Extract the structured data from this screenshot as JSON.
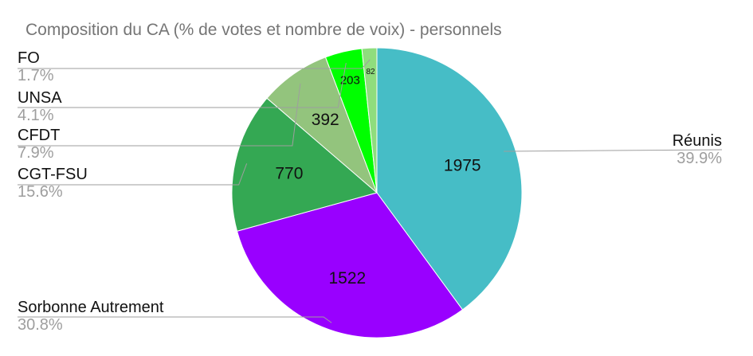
{
  "chart_data": {
    "type": "pie",
    "title": "Composition du CA (% de votes et nombre de voix) - personnels",
    "slices": [
      {
        "name": "Réunis",
        "value": 1975,
        "percent": "39.9%",
        "color": "#46bdc6"
      },
      {
        "name": "Sorbonne Autrement",
        "value": 1522,
        "percent": "30.8%",
        "color": "#9900ff"
      },
      {
        "name": "CGT-FSU",
        "value": 770,
        "percent": "15.6%",
        "color": "#34a853"
      },
      {
        "name": "CFDT",
        "value": 392,
        "percent": "7.9%",
        "color": "#93c47d"
      },
      {
        "name": "UNSA",
        "value": 203,
        "percent": "4.1%",
        "color": "#00ff00"
      },
      {
        "name": "FO",
        "value": 82,
        "percent": "1.7%",
        "color": "#8fdd7d"
      }
    ],
    "legend": "none",
    "data_labels": "value"
  }
}
